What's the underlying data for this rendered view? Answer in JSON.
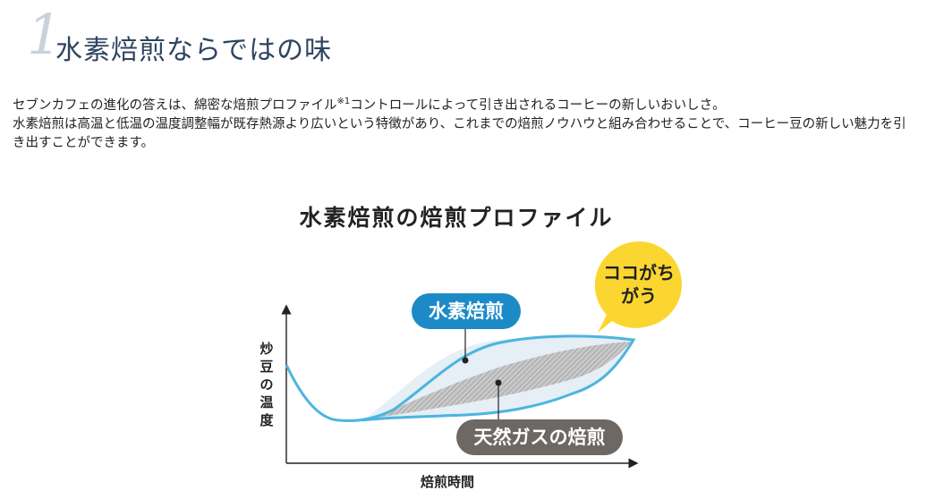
{
  "heading": {
    "number": "1",
    "title": "水素焙煎ならではの味"
  },
  "intro": {
    "line1_before": "セブンカフェの進化の答えは、綿密な焙煎プロファイル",
    "line1_note": "※1",
    "line1_after": "コントロールによって引き出されるコーヒーの新しいおいしさ。",
    "line2": "水素焙煎は高温と低温の温度調整幅が既存熱源より広いという特徴があり、これまでの焙煎ノウハウと組み合わせることで、コーヒー豆の新しい魅力を引き出すことができます。"
  },
  "diagram": {
    "title": "水素焙煎の焙煎プロファイル",
    "y_axis_label": "炒豆の温度",
    "x_axis_label": "焙煎時間",
    "hydrogen_label": "水素焙煎",
    "gas_label": "天然ガスの焙煎",
    "callout": "ココがちがう",
    "colors": {
      "hydrogen": "#1b8ac7",
      "hydrogen_curve": "#4bb5df",
      "gas": "#6e6864",
      "callout": "#fcd630"
    }
  }
}
